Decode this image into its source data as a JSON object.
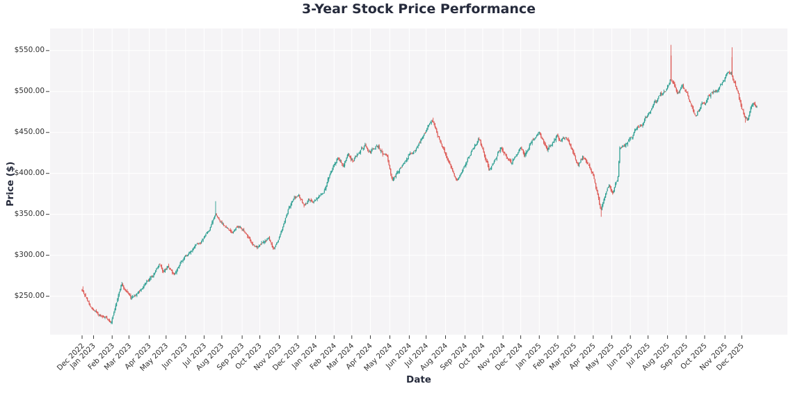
{
  "title": "3-Year Stock Price Performance",
  "x_axis": {
    "label": "Date",
    "ticks": [
      "Dec 2022",
      "Jan 2023",
      "Feb 2023",
      "Mar 2023",
      "Apr 2023",
      "May 2023",
      "Jun 2023",
      "Jul 2023",
      "Aug 2023",
      "Sep 2023",
      "Oct 2023",
      "Nov 2023",
      "Dec 2023",
      "Jan 2024",
      "Feb 2024",
      "Mar 2024",
      "Apr 2024",
      "May 2024",
      "Jun 2024",
      "Jul 2024",
      "Aug 2024",
      "Sep 2024",
      "Oct 2024",
      "Nov 2024",
      "Dec 2024",
      "Jan 2025",
      "Feb 2025",
      "Mar 2025",
      "Apr 2025",
      "May 2025",
      "Jun 2025",
      "Jul 2025",
      "Aug 2025",
      "Sep 2025",
      "Oct 2025",
      "Nov 2025",
      "Dec 2025"
    ]
  },
  "y_axis": {
    "label": "Price ($)",
    "ticks": [
      "$550.00",
      "$500.00",
      "$450.00",
      "$400.00",
      "$350.00",
      "$300.00",
      "$250.00"
    ],
    "tick_values": [
      550,
      500,
      450,
      400,
      350,
      300,
      250
    ]
  },
  "style": {
    "plot_bg": "#f5f4f6",
    "grid_color": "#ffffff",
    "tick_mark_color": "#3a3a3a",
    "up_color": "#2a9d90",
    "down_color": "#dc544f",
    "text_color": "#262b3c"
  },
  "chart_data": {
    "type": "candlestick",
    "title": "3-Year Stock Price Performance",
    "xlabel": "Date",
    "ylabel": "Price ($)",
    "x_start": "Dec 2022",
    "x_end": "Dec 2025",
    "ylim": [
      203,
      577
    ],
    "grid": true,
    "legend": false,
    "up_color": "#2a9d90",
    "down_color": "#dc544f",
    "month_trading_days": [
      13,
      21,
      19,
      23,
      19,
      22,
      21,
      20,
      23,
      20,
      22,
      21,
      20,
      21,
      20,
      21,
      22,
      22,
      19,
      22,
      22,
      20,
      23,
      20,
      21,
      21,
      19,
      21,
      21,
      21,
      20,
      22,
      21,
      21,
      23,
      19,
      18
    ],
    "price_path_anchors": [
      [
        0.0,
        256
      ],
      [
        0.35,
        247
      ],
      [
        0.7,
        238
      ],
      [
        1.0,
        234
      ],
      [
        1.3,
        226
      ],
      [
        1.6,
        222
      ],
      [
        1.95,
        219
      ],
      [
        2.2,
        240
      ],
      [
        2.55,
        267
      ],
      [
        2.8,
        256
      ],
      [
        3.1,
        246
      ],
      [
        3.5,
        257
      ],
      [
        3.9,
        270
      ],
      [
        4.3,
        277
      ],
      [
        4.6,
        287
      ],
      [
        4.85,
        278
      ],
      [
        5.1,
        288
      ],
      [
        5.4,
        277
      ],
      [
        5.75,
        290
      ],
      [
        6.1,
        298
      ],
      [
        6.5,
        312
      ],
      [
        6.9,
        318
      ],
      [
        7.3,
        330
      ],
      [
        7.55,
        344
      ],
      [
        7.65,
        352
      ],
      [
        7.9,
        342
      ],
      [
        8.2,
        334
      ],
      [
        8.5,
        326
      ],
      [
        8.8,
        336
      ],
      [
        9.1,
        329
      ],
      [
        9.4,
        319
      ],
      [
        9.7,
        312
      ],
      [
        9.95,
        308
      ],
      [
        10.2,
        318
      ],
      [
        10.45,
        322
      ],
      [
        10.7,
        308
      ],
      [
        10.95,
        318
      ],
      [
        11.2,
        335
      ],
      [
        11.5,
        355
      ],
      [
        11.8,
        370
      ],
      [
        12.05,
        376
      ],
      [
        12.2,
        370
      ],
      [
        12.35,
        363
      ],
      [
        12.6,
        371
      ],
      [
        12.85,
        367
      ],
      [
        13.1,
        369
      ],
      [
        13.4,
        377
      ],
      [
        13.7,
        394
      ],
      [
        13.95,
        408
      ],
      [
        14.2,
        418
      ],
      [
        14.5,
        411
      ],
      [
        14.8,
        424
      ],
      [
        15.1,
        416
      ],
      [
        15.4,
        426
      ],
      [
        15.7,
        433
      ],
      [
        16.0,
        424
      ],
      [
        16.3,
        436
      ],
      [
        16.6,
        428
      ],
      [
        16.85,
        418
      ],
      [
        17.15,
        392
      ],
      [
        17.4,
        404
      ],
      [
        17.75,
        414
      ],
      [
        18.1,
        423
      ],
      [
        18.5,
        436
      ],
      [
        18.85,
        446
      ],
      [
        19.1,
        456
      ],
      [
        19.35,
        464
      ],
      [
        19.6,
        450
      ],
      [
        19.85,
        434
      ],
      [
        20.1,
        416
      ],
      [
        20.35,
        403
      ],
      [
        20.6,
        392
      ],
      [
        20.9,
        406
      ],
      [
        21.2,
        420
      ],
      [
        21.5,
        434
      ],
      [
        21.75,
        440
      ],
      [
        22.0,
        428
      ],
      [
        22.3,
        408
      ],
      [
        22.6,
        418
      ],
      [
        22.9,
        432
      ],
      [
        23.15,
        426
      ],
      [
        23.45,
        416
      ],
      [
        23.75,
        424
      ],
      [
        24.0,
        430
      ],
      [
        24.2,
        420
      ],
      [
        24.5,
        436
      ],
      [
        24.8,
        448
      ],
      [
        25.0,
        453
      ],
      [
        25.25,
        442
      ],
      [
        25.45,
        432
      ],
      [
        25.7,
        440
      ],
      [
        25.95,
        447
      ],
      [
        26.2,
        440
      ],
      [
        26.45,
        446
      ],
      [
        26.7,
        438
      ],
      [
        26.95,
        428
      ],
      [
        27.2,
        412
      ],
      [
        27.45,
        423
      ],
      [
        27.7,
        412
      ],
      [
        27.95,
        400
      ],
      [
        28.2,
        375
      ],
      [
        28.4,
        352
      ],
      [
        28.65,
        369
      ],
      [
        28.85,
        381
      ],
      [
        29.05,
        373
      ],
      [
        29.2,
        387
      ],
      [
        29.33,
        394
      ],
      [
        29.42,
        428
      ],
      [
        29.7,
        437
      ],
      [
        30.0,
        446
      ],
      [
        30.3,
        453
      ],
      [
        30.6,
        461
      ],
      [
        30.9,
        470
      ],
      [
        31.2,
        478
      ],
      [
        31.5,
        487
      ],
      [
        31.8,
        497
      ],
      [
        32.0,
        508
      ],
      [
        32.15,
        517
      ],
      [
        32.4,
        504
      ],
      [
        32.6,
        498
      ],
      [
        32.8,
        511
      ],
      [
        33.0,
        504
      ],
      [
        33.2,
        491
      ],
      [
        33.4,
        477
      ],
      [
        33.55,
        468
      ],
      [
        33.8,
        482
      ],
      [
        34.05,
        489
      ],
      [
        34.35,
        497
      ],
      [
        34.65,
        504
      ],
      [
        34.95,
        512
      ],
      [
        35.15,
        518
      ],
      [
        35.35,
        525
      ],
      [
        35.65,
        506
      ],
      [
        35.9,
        487
      ],
      [
        36.15,
        471
      ],
      [
        36.35,
        466
      ],
      [
        36.55,
        478
      ],
      [
        36.7,
        485
      ],
      [
        36.85,
        478
      ]
    ],
    "wick_events": [
      {
        "m": 0.08,
        "high": 262
      },
      {
        "m": 1.95,
        "low": 216
      },
      {
        "m": 7.65,
        "high": 366
      },
      {
        "m": 19.35,
        "high": 468
      },
      {
        "m": 28.42,
        "low": 347
      },
      {
        "m": 32.18,
        "high": 557,
        "body_top": 544,
        "body_bottom": 515
      },
      {
        "m": 35.4,
        "high": 554,
        "body_top": 542,
        "body_bottom": 520
      },
      {
        "m": 36.2,
        "low": 462
      }
    ]
  }
}
